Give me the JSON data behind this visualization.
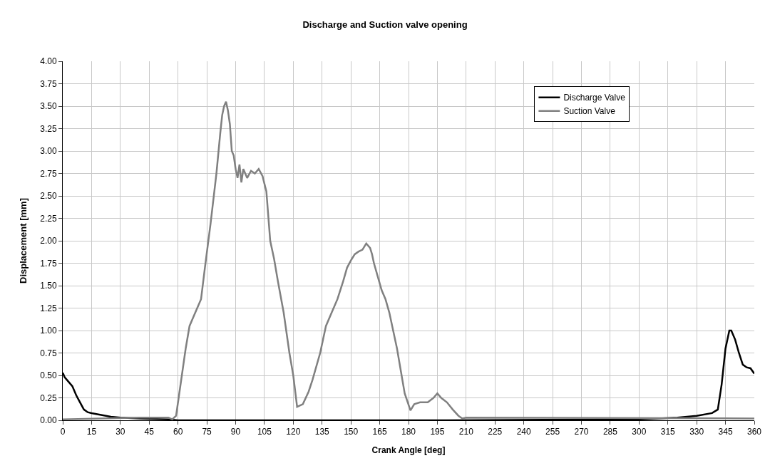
{
  "chart_data": {
    "type": "line",
    "title": "Discharge and Suction valve opening",
    "xlabel": "Crank Angle [deg]",
    "ylabel": "Displacement [mm]",
    "xlim": [
      0,
      360
    ],
    "xticks": [
      0,
      15,
      30,
      45,
      60,
      75,
      90,
      105,
      120,
      135,
      150,
      165,
      180,
      195,
      210,
      225,
      240,
      255,
      270,
      285,
      300,
      315,
      330,
      345,
      360
    ],
    "ylim": [
      0,
      4
    ],
    "yticks": [
      {
        "value": 0,
        "label": "0.00"
      },
      {
        "value": 0.25,
        "label": "0.25"
      },
      {
        "value": 0.5,
        "label": "0.50"
      },
      {
        "value": 0.75,
        "label": "0.75"
      },
      {
        "value": 1,
        "label": "1.00"
      },
      {
        "value": 1.25,
        "label": "1.25"
      },
      {
        "value": 1.5,
        "label": "1.50"
      },
      {
        "value": 1.75,
        "label": "1.75"
      },
      {
        "value": 2,
        "label": "2.00"
      },
      {
        "value": 2.25,
        "label": "2.25"
      },
      {
        "value": 2.5,
        "label": "2.50"
      },
      {
        "value": 2.75,
        "label": "2.75"
      },
      {
        "value": 3,
        "label": "3.00"
      },
      {
        "value": 3.25,
        "label": "3.25"
      },
      {
        "value": 3.5,
        "label": "3.50"
      },
      {
        "value": 3.75,
        "label": "3.75"
      },
      {
        "value": 4,
        "label": "4.00"
      }
    ],
    "grid": true,
    "legend": "top right",
    "marker": "none",
    "line_style": "solid",
    "series": [
      {
        "name": "Discharge Valve",
        "color": "#000000",
        "x": [
          0,
          1,
          3,
          5,
          7,
          9,
          11,
          13,
          15,
          20,
          25,
          30,
          40,
          55,
          60,
          200,
          300,
          320,
          330,
          338,
          341,
          343,
          345,
          347,
          348,
          350,
          352,
          354,
          356,
          358,
          360
        ],
        "values": [
          0.53,
          0.48,
          0.43,
          0.38,
          0.28,
          0.2,
          0.12,
          0.09,
          0.08,
          0.06,
          0.04,
          0.03,
          0.02,
          0.01,
          0.0,
          0.0,
          0.01,
          0.03,
          0.05,
          0.08,
          0.12,
          0.4,
          0.8,
          1.0,
          1.0,
          0.9,
          0.75,
          0.62,
          0.59,
          0.58,
          0.52
        ]
      },
      {
        "name": "Suction Valve",
        "color": "#808080",
        "x": [
          0,
          20,
          40,
          55,
          57,
          59,
          60,
          62,
          64,
          66,
          68,
          70,
          72,
          74,
          77,
          80,
          82,
          83,
          84,
          85,
          86,
          87,
          88,
          89,
          90,
          91,
          92,
          93,
          94,
          96,
          98,
          100,
          102,
          104,
          106,
          108,
          110,
          112,
          115,
          118,
          120,
          122,
          125,
          128,
          130,
          134,
          137,
          140,
          143,
          146,
          148,
          150,
          152,
          154,
          156,
          158,
          160,
          161,
          162,
          164,
          166,
          168,
          170,
          172,
          174,
          176,
          178,
          181,
          183,
          186,
          190,
          193,
          195,
          197,
          200,
          203,
          206,
          208,
          210,
          360
        ],
        "values": [
          0.01,
          0.02,
          0.03,
          0.03,
          0.01,
          0.05,
          0.2,
          0.5,
          0.8,
          1.05,
          1.15,
          1.25,
          1.35,
          1.7,
          2.2,
          2.75,
          3.2,
          3.4,
          3.5,
          3.55,
          3.45,
          3.3,
          3.0,
          2.95,
          2.8,
          2.7,
          2.85,
          2.65,
          2.8,
          2.7,
          2.78,
          2.75,
          2.8,
          2.72,
          2.55,
          2.0,
          1.8,
          1.55,
          1.2,
          0.75,
          0.5,
          0.15,
          0.18,
          0.32,
          0.45,
          0.75,
          1.05,
          1.2,
          1.35,
          1.55,
          1.7,
          1.78,
          1.85,
          1.88,
          1.9,
          1.97,
          1.92,
          1.85,
          1.75,
          1.6,
          1.45,
          1.35,
          1.2,
          1.0,
          0.8,
          0.55,
          0.3,
          0.11,
          0.18,
          0.2,
          0.2,
          0.25,
          0.3,
          0.25,
          0.2,
          0.12,
          0.05,
          0.02,
          0.03,
          0.02
        ]
      }
    ]
  }
}
